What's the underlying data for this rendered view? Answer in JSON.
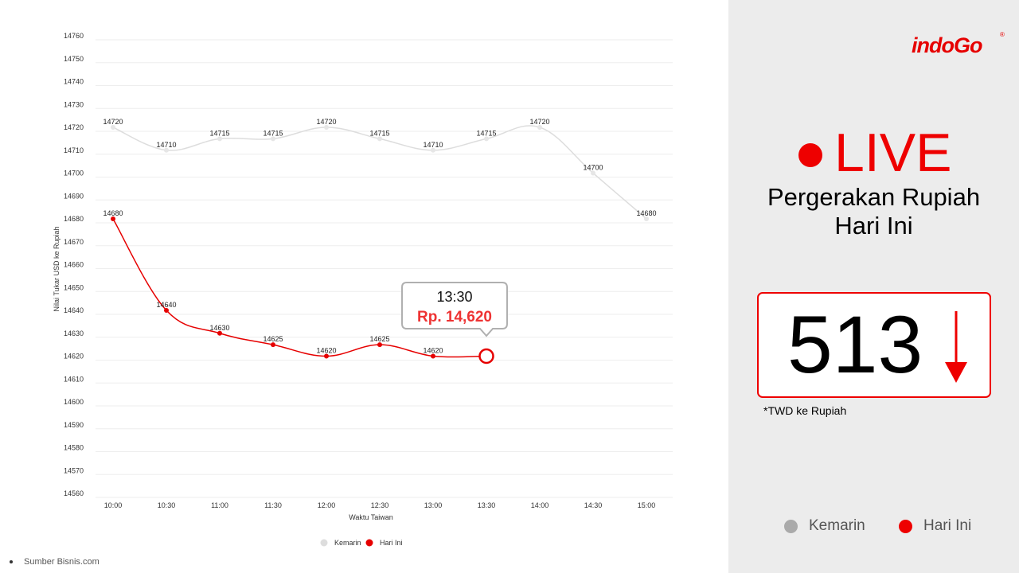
{
  "chart_data": {
    "type": "line",
    "categories": [
      "10:00",
      "10:30",
      "11:00",
      "11:30",
      "12:00",
      "12:30",
      "13:00",
      "13:30",
      "14:00",
      "14:30",
      "15:00"
    ],
    "series": [
      {
        "name": "Kemarin",
        "color": "#dddddd",
        "values": [
          14720,
          14710,
          14715,
          14715,
          14720,
          14715,
          14710,
          14715,
          14720,
          14700,
          14680
        ]
      },
      {
        "name": "Hari Ini",
        "color": "#e60000",
        "values": [
          14680,
          14640,
          14630,
          14625,
          14620,
          14625,
          14620,
          14620,
          null,
          null,
          null
        ]
      }
    ],
    "data_labels": {
      "Kemarin": [
        "14720",
        "14710",
        "14715",
        "14715",
        "14720",
        "14715",
        "14710",
        "14715",
        "14720",
        "14700",
        "14680"
      ],
      "Hari Ini": [
        "14680",
        "14640",
        "14630",
        "14625",
        "14620",
        "14625",
        "14620",
        null,
        null,
        null,
        null
      ]
    },
    "yticks": [
      14760,
      14750,
      14740,
      14730,
      14720,
      14710,
      14700,
      14690,
      14680,
      14670,
      14660,
      14650,
      14640,
      14630,
      14620,
      14610,
      14600,
      14590,
      14580,
      14570,
      14560
    ],
    "ylim": [
      14560,
      14760
    ],
    "xlabel": "Waktu Taiwan",
    "ylabel": "Nilai Tukar USD ke Rupiah",
    "grid": true,
    "legend": "bottom-center",
    "tooltip": {
      "time": "13:30",
      "value": "Rp. 14,620",
      "category": "13:30",
      "series": "Hari Ini"
    }
  },
  "source": "Sumber Bisnis.com",
  "brand": {
    "name": "indoGo",
    "registered": "®",
    "color": "#e60000"
  },
  "live": {
    "label": "LIVE",
    "color": "#ee0000"
  },
  "subtitle": {
    "line1": "Pergerakan Rupiah",
    "line2": "Hari Ini"
  },
  "rate": {
    "value": "513",
    "direction": "down",
    "note": "*TWD ke Rupiah"
  },
  "legend": [
    {
      "label": "Kemarin",
      "color": "#aaaaaa"
    },
    {
      "label": "Hari Ini",
      "color": "#ee0000"
    }
  ]
}
